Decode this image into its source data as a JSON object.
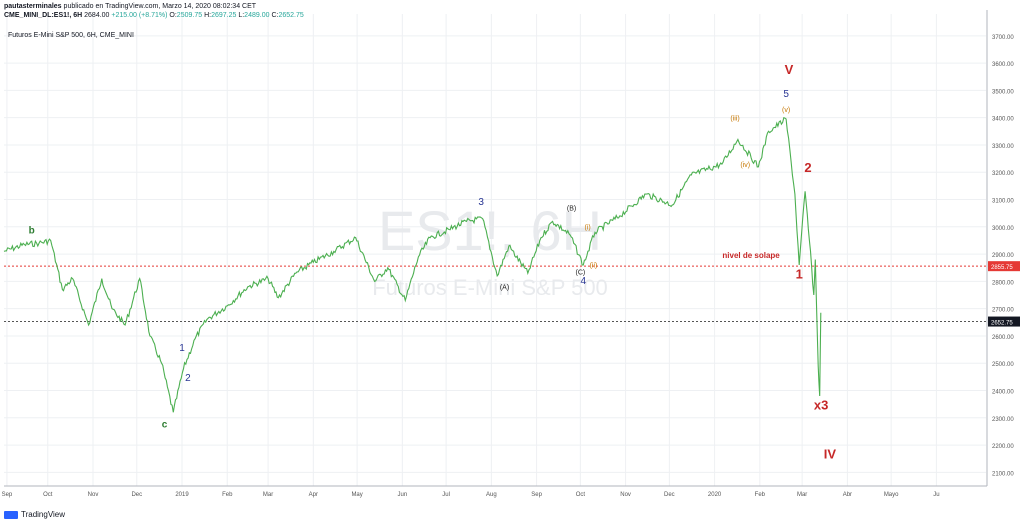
{
  "header": {
    "user": "pautasterminales",
    "published": "publicado en TradingView.com, Marzo 14, 2020 08:02:34 CET",
    "symbol": "CME_MINI_DL:ES1!, 6H",
    "last": "2684.00",
    "change": "+215.00 (+8.71%)",
    "ohlc_o_label": "O:",
    "ohlc_o": "2509.75",
    "ohlc_h_label": "H:",
    "ohlc_h": "2697.25",
    "ohlc_l_label": "L:",
    "ohlc_l": "2489.00",
    "ohlc_c_label": "C:",
    "ohlc_c": "2652.75"
  },
  "series_title": "Futuros E-Mini S&P 500, 6H, CME_MINI",
  "watermark": {
    "ticker": "ES1!, 6H",
    "name": "Futuros E-Mini S&P 500"
  },
  "footer": {
    "brand": "TradingView"
  },
  "colors": {
    "candle": "#4caf50",
    "candle_dark": "#2e7d32",
    "overlap_line": "#e53935",
    "price_line": "#555555",
    "grid": "#eef0f3",
    "wave_green": "#2e7d32",
    "wave_blue": "#283593",
    "wave_orange": "#c67600",
    "wave_red": "#c62828",
    "wave_black": "#222222"
  },
  "chart_data": {
    "type": "line",
    "ylim": [
      2050,
      3780
    ],
    "y_ticks": [
      "3700.00",
      "3600.00",
      "3500.00",
      "3400.00",
      "3300.00",
      "3200.00",
      "3100.00",
      "3000.00",
      "2900.00",
      "2800.00",
      "2700.00",
      "2600.00",
      "2500.00",
      "2400.00",
      "2300.00",
      "2200.00",
      "2100.00"
    ],
    "x_ticks": [
      "Sep",
      "Oct",
      "Nov",
      "Dec",
      "2019",
      "Feb",
      "Mar",
      "Apr",
      "May",
      "Jun",
      "Jul",
      "Aug",
      "Sep",
      "Oct",
      "Nov",
      "Dec",
      "2020",
      "Feb",
      "Mar",
      "Abr",
      "Mayo",
      "Ju"
    ],
    "series": [
      {
        "values": [
          [
            "2018-09-01",
            2910
          ],
          [
            "2018-09-15",
            2935
          ],
          [
            "2018-09-25",
            2940
          ],
          [
            "2018-10-03",
            2950
          ],
          [
            "2018-10-11",
            2770
          ],
          [
            "2018-10-18",
            2810
          ],
          [
            "2018-10-29",
            2640
          ],
          [
            "2018-11-07",
            2810
          ],
          [
            "2018-11-14",
            2700
          ],
          [
            "2018-11-23",
            2640
          ],
          [
            "2018-12-03",
            2810
          ],
          [
            "2018-12-10",
            2600
          ],
          [
            "2018-12-18",
            2500
          ],
          [
            "2018-12-26",
            2320
          ],
          [
            "2019-01-02",
            2480
          ],
          [
            "2019-01-10",
            2590
          ],
          [
            "2019-01-18",
            2660
          ],
          [
            "2019-02-01",
            2710
          ],
          [
            "2019-02-15",
            2780
          ],
          [
            "2019-03-01",
            2810
          ],
          [
            "2019-03-08",
            2740
          ],
          [
            "2019-03-20",
            2830
          ],
          [
            "2019-04-01",
            2870
          ],
          [
            "2019-04-15",
            2910
          ],
          [
            "2019-04-30",
            2960
          ],
          [
            "2019-05-13",
            2800
          ],
          [
            "2019-05-22",
            2850
          ],
          [
            "2019-06-03",
            2730
          ],
          [
            "2019-06-12",
            2890
          ],
          [
            "2019-06-20",
            2960
          ],
          [
            "2019-07-03",
            2990
          ],
          [
            "2019-07-15",
            3020
          ],
          [
            "2019-07-26",
            3030
          ],
          [
            "2019-08-05",
            2820
          ],
          [
            "2019-08-13",
            2930
          ],
          [
            "2019-08-26",
            2830
          ],
          [
            "2019-09-04",
            2960
          ],
          [
            "2019-09-12",
            3020
          ],
          [
            "2019-09-24",
            2970
          ],
          [
            "2019-10-03",
            2860
          ],
          [
            "2019-10-11",
            2980
          ],
          [
            "2019-10-28",
            3040
          ],
          [
            "2019-11-15",
            3120
          ],
          [
            "2019-12-03",
            3080
          ],
          [
            "2019-12-16",
            3190
          ],
          [
            "2020-01-06",
            3230
          ],
          [
            "2020-01-17",
            3320
          ],
          [
            "2020-01-31",
            3220
          ],
          [
            "2020-02-07",
            3350
          ],
          [
            "2020-02-19",
            3395
          ],
          [
            "2020-02-25",
            3120
          ],
          [
            "2020-02-28",
            2860
          ],
          [
            "2020-03-03",
            3130
          ],
          [
            "2020-03-06",
            2950
          ],
          [
            "2020-03-09",
            2750
          ],
          [
            "2020-03-10",
            2880
          ],
          [
            "2020-03-12",
            2490
          ],
          [
            "2020-03-13",
            2380
          ],
          [
            "2020-03-13T18:00",
            2685
          ]
        ]
      }
    ],
    "horizontal_lines": [
      {
        "label": "2855.75",
        "value": 2855.75,
        "style": "dotted",
        "color": "#e53935"
      },
      {
        "label": "2652.75",
        "value": 2652.75,
        "style": "dotted",
        "color": "#555555"
      }
    ],
    "annotations": [
      {
        "text": "b",
        "x": "2018-09-20",
        "y": 2975,
        "color": "#2e7d32"
      },
      {
        "text": "c",
        "x": "2018-12-20",
        "y": 2265,
        "color": "#2e7d32"
      },
      {
        "text": "1",
        "x": "2019-01-01",
        "y": 2545,
        "color": "#283593"
      },
      {
        "text": "2",
        "x": "2019-01-05",
        "y": 2435,
        "color": "#283593"
      },
      {
        "text": "3",
        "x": "2019-07-25",
        "y": 3080,
        "color": "#283593"
      },
      {
        "text": "(A)",
        "x": "2019-08-10",
        "y": 2770,
        "color": "#222222"
      },
      {
        "text": "(B)",
        "x": "2019-09-25",
        "y": 3060,
        "color": "#222222"
      },
      {
        "text": "(i)",
        "x": "2019-10-06",
        "y": 2990,
        "color": "#c67600"
      },
      {
        "text": "(C)",
        "x": "2019-10-01",
        "y": 2825,
        "color": "#222222"
      },
      {
        "text": "4",
        "x": "2019-10-03",
        "y": 2790,
        "color": "#283593"
      },
      {
        "text": "(ii)",
        "x": "2019-10-10",
        "y": 2850,
        "color": "#c67600"
      },
      {
        "text": "(iii)",
        "x": "2020-01-15",
        "y": 3390,
        "color": "#c67600"
      },
      {
        "text": "(iv)",
        "x": "2020-01-22",
        "y": 3220,
        "color": "#c67600"
      },
      {
        "text": "(v)",
        "x": "2020-02-19",
        "y": 3420,
        "color": "#c67600"
      },
      {
        "text": "5",
        "x": "2020-02-19",
        "y": 3475,
        "color": "#283593"
      },
      {
        "text": "V",
        "x": "2020-02-21",
        "y": 3560,
        "color": "#c62828"
      },
      {
        "text": "2",
        "x": "2020-03-05",
        "y": 3200,
        "color": "#c62828"
      },
      {
        "text": "nivel de solape",
        "x": "2020-01-26",
        "y": 2885,
        "color": "#c62828"
      },
      {
        "text": "1",
        "x": "2020-02-28",
        "y": 2810,
        "color": "#c62828"
      },
      {
        "text": "x3",
        "x": "2020-03-14",
        "y": 2330,
        "color": "#c62828"
      },
      {
        "text": "IV",
        "x": "2020-03-20",
        "y": 2150,
        "color": "#c62828"
      }
    ]
  }
}
